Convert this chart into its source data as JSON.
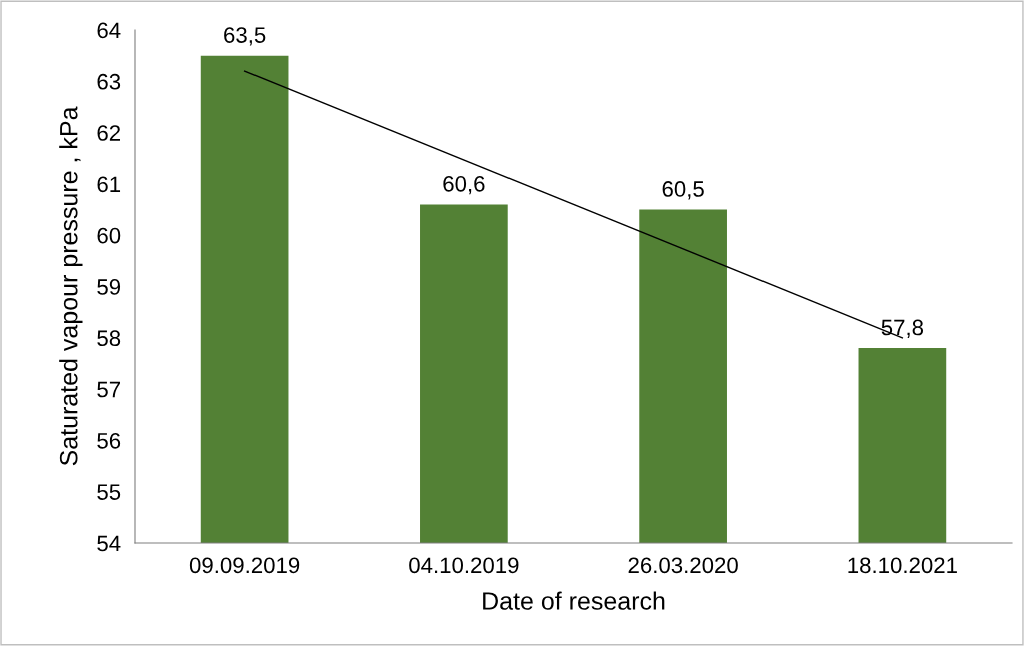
{
  "chart_data": {
    "type": "bar",
    "xlabel": "Date of research",
    "ylabel": "Saturated vapour pressure , kPa",
    "categories": [
      "09.09.2019",
      "04.10.2019",
      "26.03.2020",
      "18.10.2021"
    ],
    "series": [
      {
        "color": "#538135",
        "values": [
          63.5,
          60.6,
          60.5,
          57.8
        ],
        "value_labels": [
          "63,5",
          "60,6",
          "60,5",
          "57,8"
        ]
      },
      {
        "type": "line",
        "color": "#000000",
        "x": [
          "09.09.2019",
          "18.10.2021"
        ],
        "values": [
          63.2,
          58.0
        ]
      }
    ],
    "ylim": [
      54,
      64
    ],
    "yticks": [
      54,
      55,
      56,
      57,
      58,
      59,
      60,
      61,
      62,
      63,
      64
    ],
    "grid": false
  }
}
